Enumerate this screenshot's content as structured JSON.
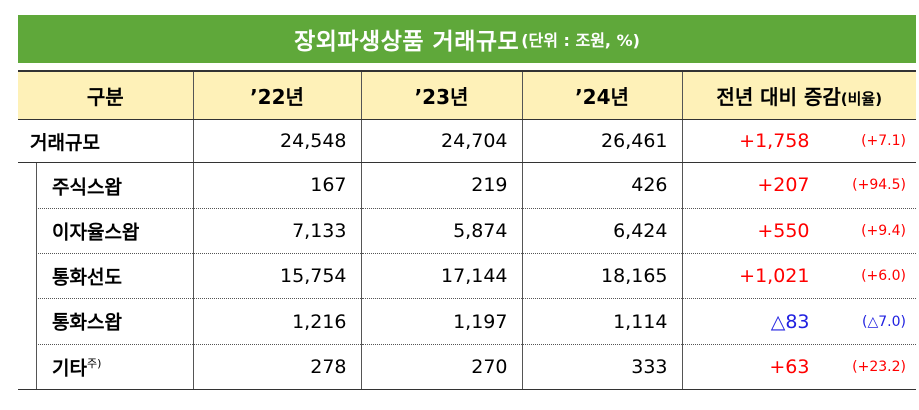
{
  "title": {
    "main": "장외파생상품 거래규모",
    "unit": "(단위 : 조원, %)"
  },
  "colors": {
    "title_bg": "#5fa83a",
    "header_bg": "#fef1b8",
    "increase": "#ff0000",
    "decrease": "#2020e0"
  },
  "header": {
    "category": "구분",
    "y22": "’22년",
    "y23": "’23년",
    "y24": "’24년",
    "change": "전년 대비 증감",
    "change_sub": "(비율)"
  },
  "total": {
    "label": "거래규모",
    "y22": "24,548",
    "y23": "24,704",
    "y24": "26,461",
    "diff": "+1,758",
    "rate": "(+7.1)"
  },
  "rows": [
    {
      "label": "주식스왑",
      "note": "",
      "y22": "167",
      "y23": "219",
      "y24": "426",
      "diff": "+207",
      "rate": "(+94.5)"
    },
    {
      "label": "이자율스왑",
      "note": "",
      "y22": "7,133",
      "y23": "5,874",
      "y24": "6,424",
      "diff": "+550",
      "rate": "(+9.4)"
    },
    {
      "label": "통화선도",
      "note": "",
      "y22": "15,754",
      "y23": "17,144",
      "y24": "18,165",
      "diff": "+1,021",
      "rate": "(+6.0)"
    },
    {
      "label": "통화스왑",
      "note": "",
      "y22": "1,216",
      "y23": "1,197",
      "y24": "1,114",
      "diff": "△83",
      "rate": "(△7.0)"
    },
    {
      "label": "기타",
      "note": "주)",
      "y22": "278",
      "y23": "270",
      "y24": "333",
      "diff": "+63",
      "rate": "(+23.2)"
    }
  ]
}
